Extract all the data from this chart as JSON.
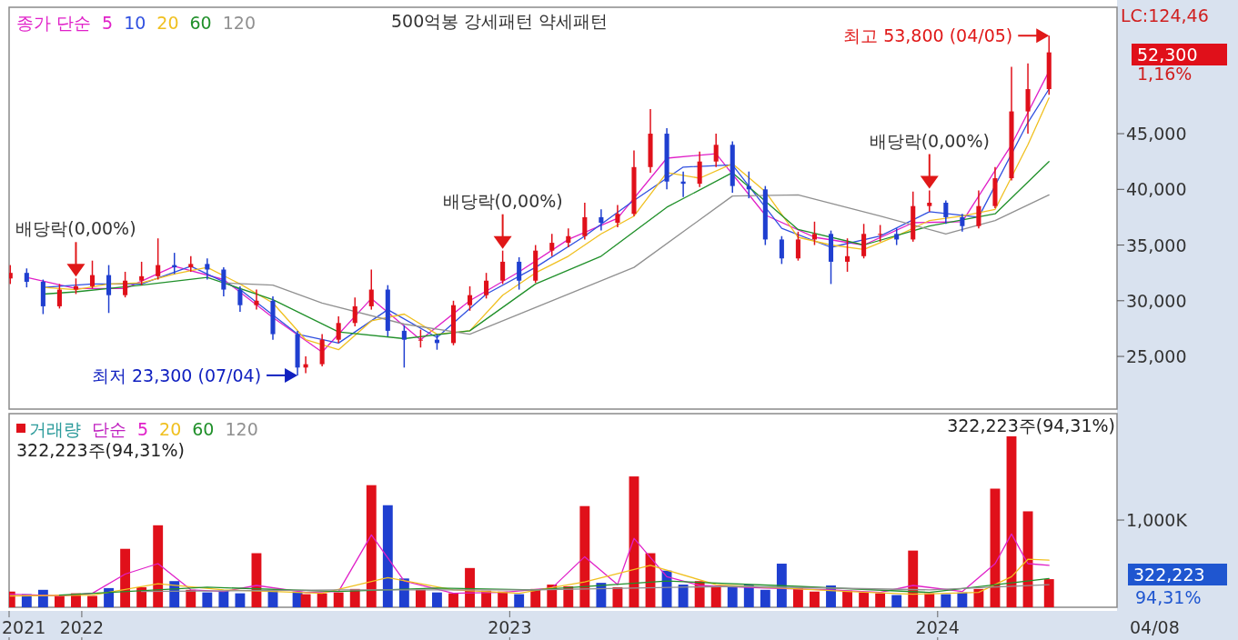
{
  "chart_data": [
    {
      "type": "candlestick",
      "legend": "top left",
      "legend_title": "종가 단순",
      "tick_labels": "y",
      "xlim": [
        "2021-10-31",
        "2024-06-02"
      ],
      "ylim": [
        20270,
        56350
      ],
      "yticks": [
        {
          "value": 25000,
          "label": "25,000"
        },
        {
          "value": 30000,
          "label": "30,000"
        },
        {
          "value": 35000,
          "label": "35,000"
        },
        {
          "value": 40000,
          "label": "40,000"
        },
        {
          "value": 45000,
          "label": "45,000"
        }
      ],
      "x": [
        "2021-11-01",
        "2021-11-15",
        "2021-11-29",
        "2021-12-13",
        "2021-12-27",
        "2022-01-10",
        "2022-01-24",
        "2022-02-07",
        "2022-02-21",
        "2022-03-07",
        "2022-03-21",
        "2022-04-04",
        "2022-04-18",
        "2022-05-02",
        "2022-05-16",
        "2022-05-30",
        "2022-06-13",
        "2022-07-04",
        "2022-07-11",
        "2022-07-25",
        "2022-08-08",
        "2022-08-22",
        "2022-09-05",
        "2022-09-19",
        "2022-10-03",
        "2022-10-17",
        "2022-10-31",
        "2022-11-14",
        "2022-11-28",
        "2022-12-12",
        "2022-12-26",
        "2023-01-09",
        "2023-01-23",
        "2023-02-06",
        "2023-02-20",
        "2023-03-06",
        "2023-03-20",
        "2023-04-03",
        "2023-04-17",
        "2023-05-01",
        "2023-05-15",
        "2023-05-29",
        "2023-06-12",
        "2023-06-26",
        "2023-07-10",
        "2023-07-24",
        "2023-08-07",
        "2023-08-21",
        "2023-09-04",
        "2023-09-18",
        "2023-10-02",
        "2023-10-16",
        "2023-10-30",
        "2023-11-13",
        "2023-11-27",
        "2023-12-11",
        "2023-12-25",
        "2024-01-08",
        "2024-01-22",
        "2024-02-05",
        "2024-02-19",
        "2024-03-04",
        "2024-03-18",
        "2024-04-05"
      ],
      "colors": [
        "#e0101a",
        "#1f3fd0",
        "#1f3fd0",
        "#e0101a",
        "#e0101a",
        "#e0101a",
        "#1f3fd0",
        "#e0101a",
        "#e0101a",
        "#e0101a",
        "#1f3fd0",
        "#e0101a",
        "#1f3fd0",
        "#1f3fd0",
        "#1f3fd0",
        "#e0101a",
        "#1f3fd0",
        "#1f3fd0",
        "#e0101a",
        "#e0101a",
        "#e0101a",
        "#e0101a",
        "#e0101a",
        "#1f3fd0",
        "#1f3fd0",
        "#e0101a",
        "#1f3fd0",
        "#e0101a",
        "#e0101a",
        "#e0101a",
        "#e0101a",
        "#1f3fd0",
        "#e0101a",
        "#e0101a",
        "#e0101a",
        "#e0101a",
        "#1f3fd0",
        "#e0101a",
        "#e0101a",
        "#e0101a",
        "#1f3fd0",
        "#1f3fd0",
        "#e0101a",
        "#e0101a",
        "#1f3fd0",
        "#1f3fd0",
        "#1f3fd0",
        "#1f3fd0",
        "#e0101a",
        "#e0101a",
        "#1f3fd0",
        "#e0101a",
        "#e0101a",
        "#e0101a",
        "#1f3fd0",
        "#e0101a",
        "#e0101a",
        "#1f3fd0",
        "#1f3fd0",
        "#e0101a",
        "#e0101a",
        "#e0101a",
        "#e0101a",
        "#e0101a"
      ],
      "ohlc": [
        [
          32000,
          33200,
          31500,
          32500
        ],
        [
          32500,
          32900,
          31200,
          31700
        ],
        [
          31700,
          31900,
          28800,
          29500
        ],
        [
          29500,
          31500,
          29300,
          31000
        ],
        [
          31000,
          32000,
          30600,
          31300
        ],
        [
          31300,
          33600,
          31100,
          32300
        ],
        [
          32300,
          33200,
          28900,
          30500
        ],
        [
          30500,
          32600,
          30300,
          31800
        ],
        [
          31800,
          33500,
          31400,
          32200
        ],
        [
          32200,
          35600,
          31900,
          33200
        ],
        [
          33200,
          34300,
          32400,
          33000
        ],
        [
          33000,
          34000,
          32600,
          33300
        ],
        [
          33300,
          33800,
          31900,
          32800
        ],
        [
          32800,
          33000,
          30400,
          31000
        ],
        [
          31000,
          31300,
          29000,
          29600
        ],
        [
          29600,
          31000,
          29200,
          30000
        ],
        [
          30000,
          30400,
          26500,
          27000
        ],
        [
          27000,
          27300,
          23300,
          24000
        ],
        [
          24000,
          25000,
          23500,
          24300
        ],
        [
          24300,
          27000,
          24100,
          26500
        ],
        [
          26500,
          28600,
          26200,
          28000
        ],
        [
          28000,
          30300,
          27700,
          29500
        ],
        [
          29500,
          32800,
          29200,
          31000
        ],
        [
          31000,
          31400,
          26800,
          27300
        ],
        [
          27300,
          27800,
          24000,
          26500
        ],
        [
          26500,
          27400,
          25800,
          26500
        ],
        [
          26500,
          27000,
          25600,
          26200
        ],
        [
          26200,
          30000,
          26000,
          29600
        ],
        [
          29600,
          31300,
          29100,
          30500
        ],
        [
          30500,
          32500,
          30200,
          31800
        ],
        [
          31800,
          34500,
          31500,
          33500
        ],
        [
          33500,
          33900,
          31000,
          31800
        ],
        [
          31800,
          35000,
          31600,
          34500
        ],
        [
          34500,
          36000,
          34000,
          35200
        ],
        [
          35200,
          36500,
          34800,
          35800
        ],
        [
          35800,
          38800,
          35500,
          37500
        ],
        [
          37500,
          38200,
          36300,
          37000
        ],
        [
          37000,
          38600,
          36600,
          37800
        ],
        [
          37800,
          43500,
          37600,
          42000
        ],
        [
          42000,
          47200,
          41500,
          45000
        ],
        [
          45000,
          45500,
          40000,
          40700
        ],
        [
          40700,
          41600,
          39300,
          40500
        ],
        [
          40500,
          43400,
          40200,
          42500
        ],
        [
          42500,
          45000,
          42000,
          44000
        ],
        [
          44000,
          44300,
          39700,
          40300
        ],
        [
          40300,
          41600,
          39200,
          40000
        ],
        [
          40000,
          40300,
          35000,
          35500
        ],
        [
          35500,
          35800,
          33300,
          33800
        ],
        [
          33800,
          36200,
          33600,
          35500
        ],
        [
          35500,
          37100,
          35000,
          36000
        ],
        [
          36000,
          36300,
          31500,
          33500
        ],
        [
          33500,
          35600,
          32600,
          34000
        ],
        [
          34000,
          36900,
          33800,
          36000
        ],
        [
          36000,
          36800,
          35300,
          36000
        ],
        [
          36000,
          36500,
          35000,
          35500
        ],
        [
          35500,
          39800,
          35300,
          38500
        ],
        [
          38500,
          39900,
          38000,
          38800
        ],
        [
          38800,
          39000,
          36900,
          37500
        ],
        [
          37500,
          37800,
          36200,
          36700
        ],
        [
          36700,
          39900,
          36500,
          38500
        ],
        [
          38500,
          42000,
          38300,
          41000
        ],
        [
          41000,
          51000,
          40800,
          47000
        ],
        [
          47000,
          51300,
          45000,
          49000
        ],
        [
          49000,
          53800,
          48500,
          52300
        ]
      ],
      "series": [
        {
          "type": "line",
          "name": "5",
          "color": "#e020c8",
          "x": [
            "2021-11-15",
            "2021-12-27",
            "2022-02-07",
            "2022-03-21",
            "2022-05-02",
            "2022-06-13",
            "2022-07-25",
            "2022-09-05",
            "2022-10-17",
            "2022-11-28",
            "2023-01-09",
            "2023-02-20",
            "2023-04-03",
            "2023-05-15",
            "2023-06-26",
            "2023-08-07",
            "2023-09-18",
            "2023-10-30",
            "2023-12-11",
            "2024-01-22",
            "2024-03-04",
            "2024-04-05"
          ],
          "values": [
            32100,
            31100,
            31100,
            33100,
            31900,
            28500,
            25400,
            30200,
            26500,
            30000,
            32600,
            35500,
            37400,
            42800,
            43200,
            37700,
            35700,
            35000,
            37000,
            37100,
            44000,
            50600
          ]
        },
        {
          "type": "line",
          "name": "10",
          "color": "#3050e0",
          "x": [
            "2021-11-29",
            "2022-01-10",
            "2022-02-21",
            "2022-04-04",
            "2022-05-16",
            "2022-07-04",
            "2022-08-08",
            "2022-09-19",
            "2022-10-31",
            "2022-12-12",
            "2023-01-23",
            "2023-03-06",
            "2023-04-17",
            "2023-05-29",
            "2023-07-10",
            "2023-08-21",
            "2023-10-02",
            "2023-11-13",
            "2023-12-25",
            "2024-02-05",
            "2024-03-18",
            "2024-04-05"
          ],
          "values": [
            31200,
            31500,
            31500,
            33100,
            31000,
            27000,
            26200,
            29200,
            26700,
            30600,
            33000,
            35800,
            39000,
            42000,
            42200,
            36500,
            34800,
            35800,
            38000,
            37500,
            46000,
            49000
          ]
        },
        {
          "type": "line",
          "name": "20",
          "color": "#f0c020",
          "x": [
            "2021-11-29",
            "2021-12-27",
            "2022-01-24",
            "2022-02-21",
            "2022-03-21",
            "2022-04-18",
            "2022-05-16",
            "2022-06-13",
            "2022-07-11",
            "2022-08-08",
            "2022-09-05",
            "2022-10-03",
            "2022-10-31",
            "2022-11-28",
            "2022-12-26",
            "2023-01-23",
            "2023-02-20",
            "2023-03-20",
            "2023-04-17",
            "2023-05-15",
            "2023-06-12",
            "2023-07-10",
            "2023-08-07",
            "2023-09-04",
            "2023-10-02",
            "2023-10-30",
            "2023-11-27",
            "2023-12-25",
            "2024-01-22",
            "2024-02-19",
            "2024-03-18",
            "2024-04-05"
          ],
          "values": [
            31200,
            31000,
            31500,
            31600,
            32400,
            33000,
            31500,
            29800,
            26500,
            25600,
            28200,
            28800,
            27000,
            27300,
            30500,
            32500,
            34000,
            36000,
            37600,
            41500,
            41000,
            42300,
            39800,
            35700,
            35000,
            34600,
            35800,
            37200,
            37600,
            38200,
            44000,
            48200
          ]
        },
        {
          "type": "line",
          "name": "60",
          "color": "#20902a",
          "x": [
            "2021-11-29",
            "2021-12-27",
            "2022-02-21",
            "2022-04-18",
            "2022-06-13",
            "2022-08-08",
            "2022-10-03",
            "2022-11-28",
            "2023-01-23",
            "2023-03-20",
            "2023-05-15",
            "2023-07-10",
            "2023-09-04",
            "2023-10-30",
            "2023-12-25",
            "2024-02-19",
            "2024-04-05"
          ],
          "values": [
            30600,
            30800,
            31400,
            32100,
            30100,
            27200,
            26600,
            27300,
            31500,
            34000,
            38400,
            41500,
            36400,
            35000,
            36700,
            37800,
            42500
          ]
        },
        {
          "type": "line",
          "name": "120",
          "color": "#909090",
          "x": [
            "2022-05-02",
            "2022-06-13",
            "2022-07-25",
            "2022-10-03",
            "2022-11-28",
            "2023-02-06",
            "2023-04-17",
            "2023-07-10",
            "2023-09-04",
            "2023-11-13",
            "2024-01-08",
            "2024-02-19",
            "2024-04-05"
          ],
          "values": [
            31600,
            31400,
            29800,
            27900,
            27000,
            30000,
            33000,
            39400,
            39500,
            37600,
            36000,
            37200,
            39500
          ]
        }
      ],
      "annotations": [
        "500억봉 강세패턴  약세패턴",
        "LC:124,46",
        "52,300",
        "1,16%",
        {
          "text": "배당락(0,00%)",
          "x": "2021-12-27",
          "y": 32000
        },
        {
          "text": "배당락(0,00%)",
          "x": "2022-12-26",
          "y": 34500
        },
        {
          "text": "배당락(0,00%)",
          "x": "2023-12-25",
          "y": 39900
        },
        {
          "text": "최저 23,300 (07/04)",
          "x": "2022-07-04",
          "y": 23300
        },
        {
          "text": "최고 53,800 (04/05)",
          "x": "2024-04-05",
          "y": 53800
        }
      ]
    },
    {
      "type": "bar",
      "legend": "top left",
      "legend_title": "단순",
      "xlim": [
        "2021-10-31",
        "2024-06-02"
      ],
      "ylim": [
        0,
        2220000
      ],
      "xticks": [
        {
          "value": "2021-10-31",
          "label": "2021"
        },
        {
          "value": "2022-01-01",
          "label": "2022"
        },
        {
          "value": "2023-01-01",
          "label": "2023"
        },
        {
          "value": "2024-01-01",
          "label": "2024"
        }
      ],
      "yticks": [
        {
          "value": 1000000,
          "label": "1,000K"
        }
      ],
      "x": [
        "2021-11-01",
        "2021-11-15",
        "2021-11-29",
        "2021-12-13",
        "2021-12-27",
        "2022-01-10",
        "2022-01-24",
        "2022-02-07",
        "2022-02-21",
        "2022-03-07",
        "2022-03-21",
        "2022-04-04",
        "2022-04-18",
        "2022-05-02",
        "2022-05-16",
        "2022-05-30",
        "2022-06-13",
        "2022-07-04",
        "2022-07-11",
        "2022-07-25",
        "2022-08-08",
        "2022-08-22",
        "2022-09-05",
        "2022-09-19",
        "2022-10-03",
        "2022-10-17",
        "2022-10-31",
        "2022-11-14",
        "2022-11-28",
        "2022-12-12",
        "2022-12-26",
        "2023-01-09",
        "2023-01-23",
        "2023-02-06",
        "2023-02-20",
        "2023-03-06",
        "2023-03-20",
        "2023-04-03",
        "2023-04-17",
        "2023-05-01",
        "2023-05-15",
        "2023-05-29",
        "2023-06-12",
        "2023-06-26",
        "2023-07-10",
        "2023-07-24",
        "2023-08-07",
        "2023-08-21",
        "2023-09-04",
        "2023-09-18",
        "2023-10-02",
        "2023-10-16",
        "2023-10-30",
        "2023-11-13",
        "2023-11-27",
        "2023-12-11",
        "2023-12-25",
        "2024-01-08",
        "2024-01-22",
        "2024-02-05",
        "2024-02-19",
        "2024-03-04",
        "2024-03-18",
        "2024-04-05"
      ],
      "series": [
        {
          "type": "bar",
          "name": "거래량",
          "colors": [
            "#e0101a",
            "#1f3fd0",
            "#1f3fd0",
            "#e0101a",
            "#e0101a",
            "#e0101a",
            "#1f3fd0",
            "#e0101a",
            "#e0101a",
            "#e0101a",
            "#1f3fd0",
            "#e0101a",
            "#1f3fd0",
            "#1f3fd0",
            "#1f3fd0",
            "#e0101a",
            "#1f3fd0",
            "#1f3fd0",
            "#e0101a",
            "#e0101a",
            "#e0101a",
            "#e0101a",
            "#e0101a",
            "#1f3fd0",
            "#1f3fd0",
            "#e0101a",
            "#1f3fd0",
            "#e0101a",
            "#e0101a",
            "#e0101a",
            "#e0101a",
            "#1f3fd0",
            "#e0101a",
            "#e0101a",
            "#e0101a",
            "#e0101a",
            "#1f3fd0",
            "#e0101a",
            "#e0101a",
            "#e0101a",
            "#1f3fd0",
            "#1f3fd0",
            "#e0101a",
            "#e0101a",
            "#1f3fd0",
            "#1f3fd0",
            "#1f3fd0",
            "#1f3fd0",
            "#e0101a",
            "#e0101a",
            "#1f3fd0",
            "#e0101a",
            "#e0101a",
            "#e0101a",
            "#1f3fd0",
            "#e0101a",
            "#e0101a",
            "#1f3fd0",
            "#1f3fd0",
            "#e0101a",
            "#e0101a",
            "#e0101a",
            "#e0101a",
            "#e0101a"
          ],
          "values": [
            180000,
            150000,
            200000,
            140000,
            160000,
            130000,
            220000,
            670000,
            230000,
            940000,
            300000,
            200000,
            170000,
            190000,
            160000,
            620000,
            200000,
            180000,
            150000,
            160000,
            170000,
            210000,
            1400000,
            1170000,
            330000,
            200000,
            170000,
            160000,
            450000,
            190000,
            180000,
            150000,
            210000,
            260000,
            240000,
            1160000,
            280000,
            230000,
            1500000,
            620000,
            420000,
            260000,
            300000,
            250000,
            230000,
            260000,
            200000,
            500000,
            220000,
            180000,
            250000,
            190000,
            170000,
            160000,
            140000,
            650000,
            160000,
            150000,
            170000,
            210000,
            1360000,
            1960000,
            1100000,
            322223
          ]
        },
        {
          "type": "line",
          "name": "5",
          "color": "#e020c8",
          "x": [
            "2021-11-01",
            "2021-12-13",
            "2022-01-10",
            "2022-02-07",
            "2022-03-07",
            "2022-04-04",
            "2022-05-02",
            "2022-05-30",
            "2022-07-11",
            "2022-08-08",
            "2022-09-05",
            "2022-10-03",
            "2022-11-14",
            "2022-12-26",
            "2023-02-06",
            "2023-03-06",
            "2023-04-03",
            "2023-04-17",
            "2023-05-15",
            "2023-06-12",
            "2023-08-07",
            "2023-10-02",
            "2023-11-13",
            "2023-12-11",
            "2024-01-22",
            "2024-02-19",
            "2024-03-04",
            "2024-03-18",
            "2024-04-05"
          ],
          "values": [
            150000,
            130000,
            160000,
            380000,
            500000,
            200000,
            180000,
            250000,
            170000,
            180000,
            830000,
            300000,
            160000,
            170000,
            220000,
            580000,
            260000,
            790000,
            350000,
            250000,
            220000,
            200000,
            170000,
            250000,
            180000,
            500000,
            840000,
            500000,
            480000
          ]
        },
        {
          "type": "line",
          "name": "20",
          "color": "#f0c020",
          "x": [
            "2021-11-01",
            "2022-01-10",
            "2022-03-07",
            "2022-05-02",
            "2022-06-13",
            "2022-07-25",
            "2022-09-19",
            "2022-11-14",
            "2023-01-09",
            "2023-03-06",
            "2023-05-01",
            "2023-06-26",
            "2023-08-21",
            "2023-10-16",
            "2023-12-11",
            "2024-02-05",
            "2024-03-04",
            "2024-03-18",
            "2024-04-05"
          ],
          "values": [
            130000,
            140000,
            270000,
            200000,
            180000,
            160000,
            340000,
            200000,
            160000,
            290000,
            480000,
            260000,
            220000,
            180000,
            150000,
            170000,
            350000,
            550000,
            540000
          ]
        },
        {
          "type": "line",
          "name": "60",
          "color": "#20902a",
          "x": [
            "2021-12-13",
            "2022-04-18",
            "2022-08-08",
            "2022-10-31",
            "2023-01-23",
            "2023-05-15",
            "2023-09-04",
            "2023-12-25",
            "2024-04-05"
          ],
          "values": [
            140000,
            230000,
            180000,
            220000,
            200000,
            300000,
            240000,
            170000,
            330000
          ]
        },
        {
          "type": "line",
          "name": "120",
          "color": "#909090",
          "x": [
            "2022-02-21",
            "2022-08-08",
            "2023-01-23",
            "2023-07-10",
            "2023-12-25",
            "2024-04-05"
          ],
          "values": [
            180000,
            200000,
            200000,
            240000,
            200000,
            260000
          ]
        }
      ],
      "annotations": [
        "322,223주(94,31%)",
        "322,223주(94,31%)",
        "322,223",
        "94,31%",
        "04/08"
      ]
    }
  ]
}
